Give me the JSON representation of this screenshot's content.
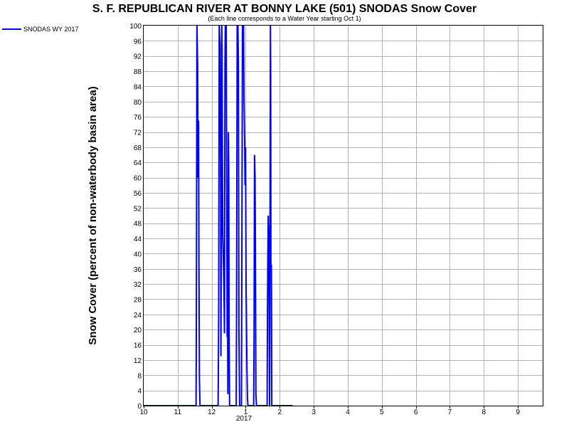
{
  "chart_data": {
    "type": "line",
    "title": "S. F. REPUBLICAN RIVER AT BONNY LAKE (501) SNODAS Snow Cover",
    "subtitle": "(Each line corresponds to a Water Year starting Oct 1)",
    "ylabel": "Snow Cover (percent of non-waterbody basin area)",
    "xlabel": "",
    "ylim": [
      0,
      100
    ],
    "xlim": [
      0,
      11.75
    ],
    "x_units": "months since Oct 1, 2016",
    "yticks": [
      "0",
      "4",
      "8",
      "12",
      "16",
      "20",
      "24",
      "28",
      "32",
      "36",
      "40",
      "44",
      "48",
      "52",
      "56",
      "60",
      "64",
      "68",
      "72",
      "76",
      "80",
      "84",
      "88",
      "92",
      "96",
      "100"
    ],
    "xticks": [
      {
        "label": "10",
        "x": 0
      },
      {
        "label": "11",
        "x": 1
      },
      {
        "label": "12",
        "x": 2
      },
      {
        "label": "1",
        "x": 3
      },
      {
        "label": "2",
        "x": 4
      },
      {
        "label": "3",
        "x": 5
      },
      {
        "label": "4",
        "x": 6
      },
      {
        "label": "5",
        "x": 7
      },
      {
        "label": "6",
        "x": 8
      },
      {
        "label": "7",
        "x": 9
      },
      {
        "label": "8",
        "x": 10
      },
      {
        "label": "9",
        "x": 11
      }
    ],
    "year_label": "2017",
    "grid": true,
    "legend_position": "top-left",
    "series": [
      {
        "name": "SNODAS WY 2017",
        "color": "#0000ff",
        "points": [
          [
            0,
            0
          ],
          [
            1.54,
            0
          ],
          [
            1.55,
            25
          ],
          [
            1.565,
            100
          ],
          [
            1.585,
            90
          ],
          [
            1.6,
            60
          ],
          [
            1.615,
            75
          ],
          [
            1.625,
            38
          ],
          [
            1.64,
            7
          ],
          [
            1.655,
            0
          ],
          [
            2.19,
            0
          ],
          [
            2.205,
            25
          ],
          [
            2.22,
            100
          ],
          [
            2.245,
            95
          ],
          [
            2.265,
            55
          ],
          [
            2.27,
            13
          ],
          [
            2.28,
            40
          ],
          [
            2.295,
            100
          ],
          [
            2.305,
            93
          ],
          [
            2.315,
            65
          ],
          [
            2.325,
            45
          ],
          [
            2.34,
            40
          ],
          [
            2.36,
            30
          ],
          [
            2.375,
            19
          ],
          [
            2.39,
            90
          ],
          [
            2.4,
            100
          ],
          [
            2.425,
            100
          ],
          [
            2.435,
            72
          ],
          [
            2.445,
            50
          ],
          [
            2.455,
            18
          ],
          [
            2.465,
            30
          ],
          [
            2.475,
            3
          ],
          [
            2.49,
            72
          ],
          [
            2.5,
            62
          ],
          [
            2.51,
            20
          ],
          [
            2.525,
            0
          ],
          [
            2.72,
            0
          ],
          [
            2.73,
            25
          ],
          [
            2.75,
            100
          ],
          [
            2.77,
            100
          ],
          [
            2.785,
            90
          ],
          [
            2.8,
            20
          ],
          [
            2.82,
            0
          ],
          [
            2.875,
            0
          ],
          [
            2.885,
            35
          ],
          [
            2.905,
            100
          ],
          [
            2.935,
            100
          ],
          [
            2.95,
            80
          ],
          [
            2.97,
            68
          ],
          [
            2.98,
            58
          ],
          [
            2.995,
            68
          ],
          [
            3.01,
            30
          ],
          [
            3.02,
            25
          ],
          [
            3.035,
            10
          ],
          [
            3.05,
            2
          ],
          [
            3.065,
            0
          ],
          [
            3.235,
            0
          ],
          [
            3.245,
            18
          ],
          [
            3.26,
            66
          ],
          [
            3.275,
            60
          ],
          [
            3.285,
            42
          ],
          [
            3.3,
            3
          ],
          [
            3.315,
            0
          ],
          [
            3.63,
            0
          ],
          [
            3.64,
            25
          ],
          [
            3.65,
            40
          ],
          [
            3.66,
            50
          ],
          [
            3.675,
            45
          ],
          [
            3.685,
            30
          ],
          [
            3.7,
            0
          ],
          [
            3.71,
            20
          ],
          [
            3.725,
            100
          ],
          [
            3.735,
            87
          ],
          [
            3.74,
            35
          ],
          [
            3.755,
            37
          ],
          [
            3.765,
            0
          ],
          [
            4.38,
            0
          ]
        ]
      }
    ]
  }
}
